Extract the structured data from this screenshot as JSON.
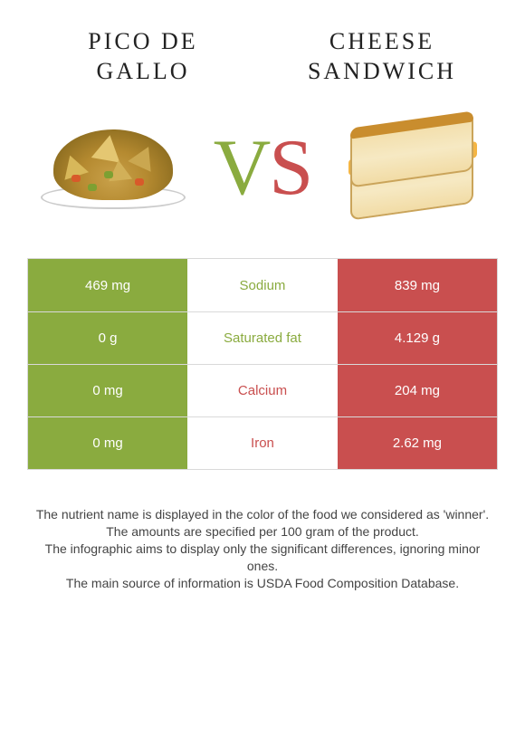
{
  "titles": {
    "left": "PICO DE GALLO",
    "right": "CHEESE SANDWICH"
  },
  "vs": {
    "v": "V",
    "s": "S"
  },
  "colors": {
    "left_bar": "#8aab3f",
    "right_bar": "#c94f4f",
    "left_text": "#8aab3f",
    "right_text": "#c94f4f",
    "border": "#d9d9d9"
  },
  "rows": [
    {
      "left": "469 mg",
      "label": "Sodium",
      "right": "839 mg",
      "winner": "left"
    },
    {
      "left": "0 g",
      "label": "Saturated fat",
      "right": "4.129 g",
      "winner": "left"
    },
    {
      "left": "0 mg",
      "label": "Calcium",
      "right": "204 mg",
      "winner": "right"
    },
    {
      "left": "0 mg",
      "label": "Iron",
      "right": "2.62 mg",
      "winner": "right"
    }
  ],
  "footnotes": [
    "The nutrient name is displayed in the color of the food we considered as 'winner'.",
    "The amounts are specified per 100 gram of the product.",
    "The infographic aims to display only the significant differences, ignoring minor ones.",
    "The main source of information is USDA Food Composition Database."
  ]
}
